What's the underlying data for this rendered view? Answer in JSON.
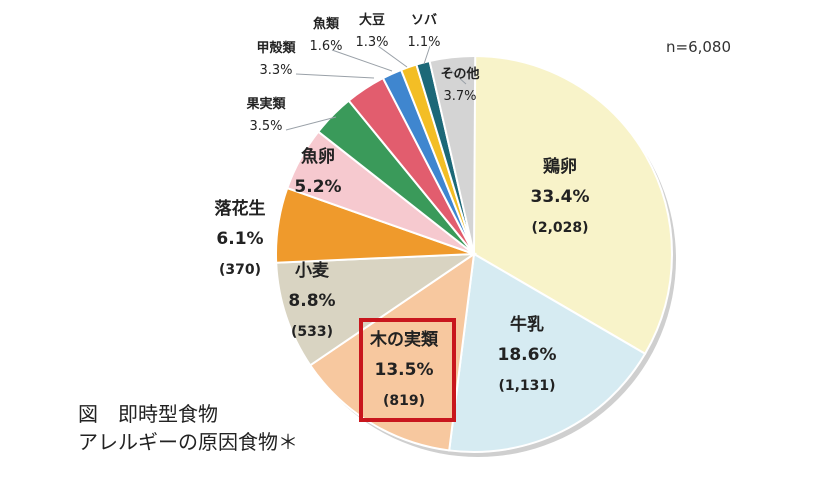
{
  "chart_data": {
    "type": "pie",
    "note": "n=6,080",
    "slices": [
      {
        "label": "鶏卵",
        "percent": 33.4,
        "percent_label": "33.4%",
        "count_label": "(2,028)",
        "color": "#f8f3c9"
      },
      {
        "label": "牛乳",
        "percent": 18.6,
        "percent_label": "18.6%",
        "count_label": "(1,131)",
        "color": "#d6ebf2"
      },
      {
        "label": "木の実類",
        "percent": 13.5,
        "percent_label": "13.5%",
        "count_label": "(819)",
        "color": "#f7c89f"
      },
      {
        "label": "小麦",
        "percent": 8.8,
        "percent_label": "8.8%",
        "count_label": "(533)",
        "color": "#d9d4c2"
      },
      {
        "label": "落花生",
        "percent": 6.1,
        "percent_label": "6.1%",
        "count_label": "(370)",
        "color": "#ef9a2c"
      },
      {
        "label": "魚卵",
        "percent": 5.2,
        "percent_label": "5.2%",
        "count_label": "",
        "color": "#f6c9cf"
      },
      {
        "label": "果実類",
        "percent": 3.5,
        "percent_label": "3.5%",
        "count_label": "",
        "color": "#3a9a5a"
      },
      {
        "label": "甲殻類",
        "percent": 3.3,
        "percent_label": "3.3%",
        "count_label": "",
        "color": "#e25d6e"
      },
      {
        "label": "魚類",
        "percent": 1.6,
        "percent_label": "1.6%",
        "count_label": "",
        "color": "#3f86cf"
      },
      {
        "label": "大豆",
        "percent": 1.3,
        "percent_label": "1.3%",
        "count_label": "",
        "color": "#f3be25"
      },
      {
        "label": "ソバ",
        "percent": 1.1,
        "percent_label": "1.1%",
        "count_label": "",
        "color": "#1c6878"
      },
      {
        "label": "その他",
        "percent": 3.7,
        "percent_label": "3.7%",
        "count_label": "",
        "color": "#d4d4d4"
      }
    ],
    "highlight": {
      "label": "木の実類",
      "color": "#c8161d"
    }
  },
  "caption": {
    "line1": "図　即時型食物",
    "line2": "アレルギーの原因食物＊"
  }
}
